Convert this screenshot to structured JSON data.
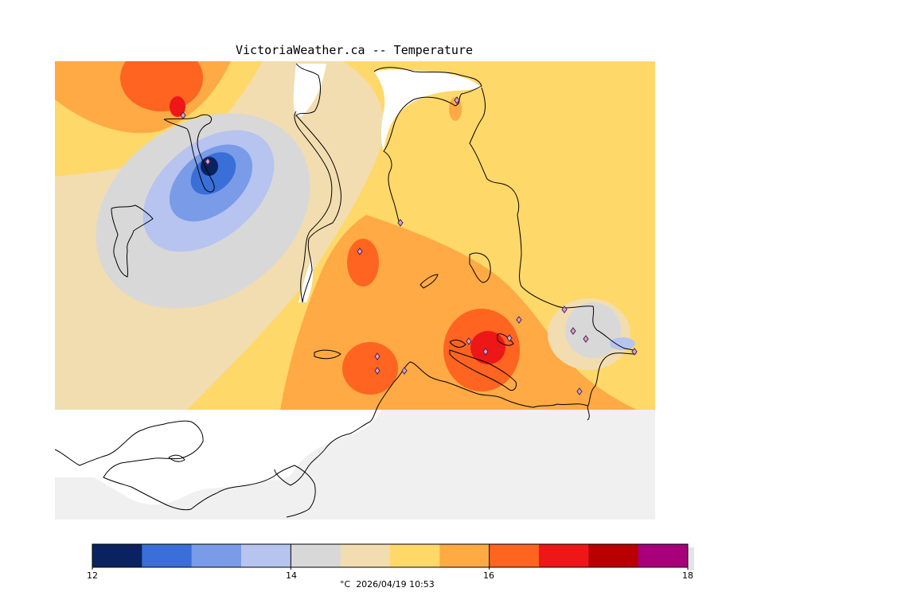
{
  "header": {
    "title": "VictoriaWeather.ca -- Temperature"
  },
  "map": {
    "variable": "Temperature",
    "unit": "°C",
    "land_color": "#f0f0f0",
    "water_color": "#ffffff",
    "coastline_color": "#000000",
    "station_marker": "diamond-icon"
  },
  "legend": {
    "min": 12,
    "max": 18,
    "tick_labels": [
      "12",
      "14",
      "16",
      "18"
    ],
    "colors": [
      "#0a2360",
      "#3a6fd8",
      "#7a9be8",
      "#b6c4ef",
      "#d8d8d8",
      "#f2ddb0",
      "#ffd86a",
      "#ffaa45",
      "#ff6420",
      "#ee1717",
      "#b80000",
      "#a8007a"
    ],
    "caption_unit": "°C",
    "caption_timestamp": "2026/04/19 10:53"
  }
}
